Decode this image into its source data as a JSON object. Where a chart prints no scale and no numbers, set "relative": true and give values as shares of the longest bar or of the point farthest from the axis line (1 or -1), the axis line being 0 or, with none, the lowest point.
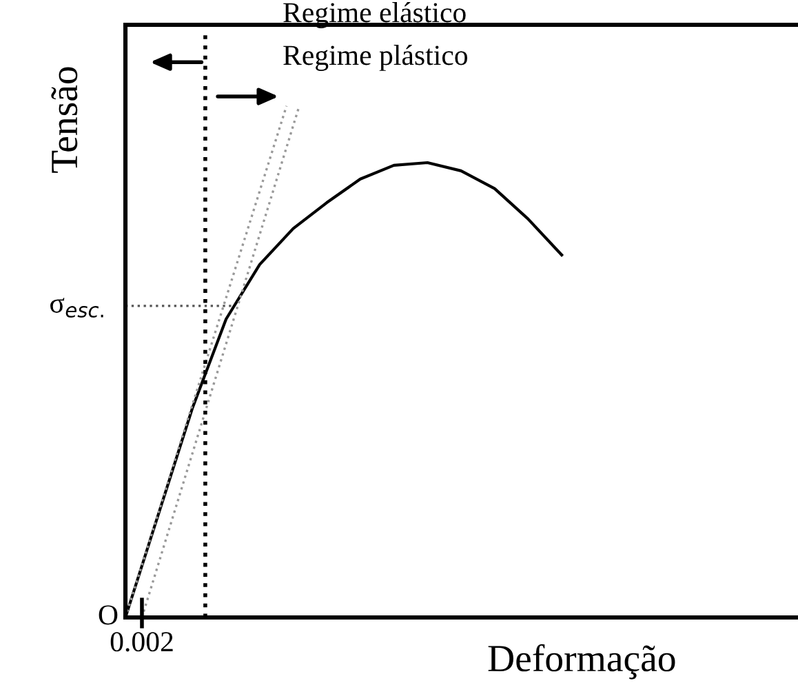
{
  "chart_data": {
    "type": "line",
    "relative": true,
    "xlabel": "Deformação",
    "ylabel": "Tensão",
    "categories": [
      null,
      null,
      null,
      null,
      null,
      null,
      null,
      null,
      null,
      null,
      null,
      null,
      null,
      null,
      null,
      null,
      null,
      null,
      null,
      null,
      null
    ],
    "series": [
      {
        "color": "#000000",
        "values": [
          0,
          0.231,
          0.461,
          0.656,
          0.776,
          0.855,
          0.912,
          0.964,
          0.994,
          1,
          0.982,
          0.943,
          0.876,
          0.797,
          null,
          null,
          null,
          null,
          null,
          null,
          null
        ]
      }
    ],
    "ref_lines": [
      {
        "axis": "y",
        "value": 0.685,
        "label": "σ$_{esc.}$",
        "color": "#555555",
        "line_style": "dotted"
      }
    ],
    "annotations": [
      "Regime elástico",
      "Regime plástico",
      "O",
      "0.002"
    ]
  }
}
